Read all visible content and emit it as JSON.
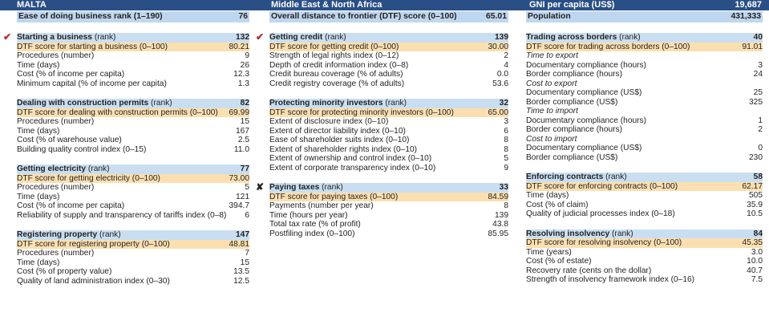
{
  "header": {
    "country": "MALTA",
    "region": "Middle East & North Africa",
    "gni_label": "GNI per capita (US$)",
    "gni_value": "19,687"
  },
  "summary": {
    "ease_label": "Ease of doing business rank (1–190)",
    "ease_value": "76",
    "dtf_label": "Overall distance to frontier (DTF) score (0–100)",
    "dtf_value": "65.01",
    "pop_label": "Population",
    "pop_value": "431,333"
  },
  "marks": {
    "check": "✔",
    "cross": "✘"
  },
  "columns": [
    [
      {
        "title": "Starting a business",
        "rank_label": "(rank)",
        "rank": "132",
        "mark": "check",
        "dtf_label": "DTF score for starting a business (0–100)",
        "dtf": "80.21",
        "rows": [
          {
            "label": "Procedures (number)",
            "value": "9"
          },
          {
            "label": "Time (days)",
            "value": "26"
          },
          {
            "label": "Cost (% of income per capita)",
            "value": "12.3"
          },
          {
            "label": "Minimum capital (% of income per capita)",
            "value": "1.3"
          }
        ]
      },
      {
        "title": "Dealing with construction permits",
        "rank_label": "(rank)",
        "rank": "82",
        "dtf_label": "DTF score for dealing with construction permits (0–100)",
        "dtf": "69.99",
        "rows": [
          {
            "label": "Procedures (number)",
            "value": "15"
          },
          {
            "label": "Time (days)",
            "value": "167"
          },
          {
            "label": "Cost (% of warehouse value)",
            "value": "2.5"
          },
          {
            "label": "Building quality control index (0–15)",
            "value": "11.0"
          }
        ]
      },
      {
        "title": "Getting electricity",
        "rank_label": "(rank)",
        "rank": "77",
        "dtf_label": "DTF score for getting electricity (0–100)",
        "dtf": "73.00",
        "rows": [
          {
            "label": "Procedures (number)",
            "value": "5"
          },
          {
            "label": "Time (days)",
            "value": "121"
          },
          {
            "label": "Cost (% of income per capita)",
            "value": "394.7"
          },
          {
            "label": "Reliability of supply and transparency of tariffs index (0–8)",
            "value": "6"
          }
        ]
      },
      {
        "title": "Registering property",
        "rank_label": "(rank)",
        "rank": "147",
        "dtf_label": "DTF score for registering property (0–100)",
        "dtf": "48.81",
        "rows": [
          {
            "label": "Procedures (number)",
            "value": "7"
          },
          {
            "label": "Time (days)",
            "value": "15"
          },
          {
            "label": "Cost (% of property value)",
            "value": "13.5"
          },
          {
            "label": "Quality of land administration index (0–30)",
            "value": "12.5"
          }
        ]
      }
    ],
    [
      {
        "title": "Getting credit",
        "rank_label": "(rank)",
        "rank": "139",
        "mark": "check",
        "dtf_label": "DTF score for getting credit (0–100)",
        "dtf": "30.00",
        "rows": [
          {
            "label": "Strength of legal rights index (0–12)",
            "value": "2"
          },
          {
            "label": "Depth of credit information index (0–8)",
            "value": "4"
          },
          {
            "label": "Credit bureau coverage (% of adults)",
            "value": "0.0"
          },
          {
            "label": "Credit registry coverage (% of adults)",
            "value": "53.6"
          }
        ]
      },
      {
        "title": "Protecting minority investors",
        "rank_label": "(rank)",
        "rank": "32",
        "dtf_label": "DTF score for protecting minority investors (0–100)",
        "dtf": "65.00",
        "rows": [
          {
            "label": "Extent of disclosure index (0–10)",
            "value": "3"
          },
          {
            "label": "Extent of director liability index (0–10)",
            "value": "6"
          },
          {
            "label": "Ease of shareholder suits index (0–10)",
            "value": "8"
          },
          {
            "label": "Extent of shareholder rights index (0–10)",
            "value": "8"
          },
          {
            "label": "Extent of ownership and control index (0–10)",
            "value": "5"
          },
          {
            "label": "Extent of corporate transparency index (0–10)",
            "value": "9"
          }
        ]
      },
      {
        "title": "Paying taxes",
        "rank_label": "(rank)",
        "rank": "33",
        "mark": "cross",
        "dtf_label": "DTF score for paying taxes (0–100)",
        "dtf": "84.59",
        "rows": [
          {
            "label": "Payments (number per year)",
            "value": "8"
          },
          {
            "label": "Time (hours per year)",
            "value": "139"
          },
          {
            "label": "Total tax rate (% of profit)",
            "value": "43.8"
          },
          {
            "label": "Postfiling index (0–100)",
            "value": "85.95"
          }
        ]
      }
    ],
    [
      {
        "title": "Trading across borders",
        "rank_label": "(rank)",
        "rank": "40",
        "dtf_label": "DTF score for trading across borders (0–100)",
        "dtf": "91.01",
        "rows": [
          {
            "label": "Time to export",
            "value": "",
            "sub": true
          },
          {
            "label": "Documentary compliance (hours)",
            "value": "3"
          },
          {
            "label": "Border compliance (hours)",
            "value": "24"
          },
          {
            "label": "Cost to export",
            "value": "",
            "sub": true
          },
          {
            "label": "Documentary compliance (US$)",
            "value": "25"
          },
          {
            "label": "Border compliance (US$)",
            "value": "325"
          },
          {
            "label": "Time to import",
            "value": "",
            "sub": true
          },
          {
            "label": "Documentary compliance (hours)",
            "value": "1"
          },
          {
            "label": "Border compliance (hours)",
            "value": "2"
          },
          {
            "label": "Cost to import",
            "value": "",
            "sub": true
          },
          {
            "label": "Documentary compliance (US$)",
            "value": "0"
          },
          {
            "label": "Border compliance (US$)",
            "value": "230"
          }
        ]
      },
      {
        "title": "Enforcing contracts",
        "rank_label": "(rank)",
        "rank": "58",
        "dtf_label": "DTF score for enforcing contracts (0–100)",
        "dtf": "62.17",
        "rows": [
          {
            "label": "Time (days)",
            "value": "505"
          },
          {
            "label": "Cost (% of claim)",
            "value": "35.9"
          },
          {
            "label": "Quality of judicial processes index (0–18)",
            "value": "10.5"
          }
        ]
      },
      {
        "title": "Resolving insolvency",
        "rank_label": "(rank)",
        "rank": "84",
        "dtf_label": "DTF score for resolving insolvency (0–100)",
        "dtf": "45.35",
        "rows": [
          {
            "label": "Time (years)",
            "value": "3.0"
          },
          {
            "label": "Cost (% of estate)",
            "value": "10.0"
          },
          {
            "label": "Recovery rate (cents on the dollar)",
            "value": "40.7"
          },
          {
            "label": "Strength of insolvency framework index (0–16)",
            "value": "7.5"
          }
        ]
      }
    ]
  ]
}
